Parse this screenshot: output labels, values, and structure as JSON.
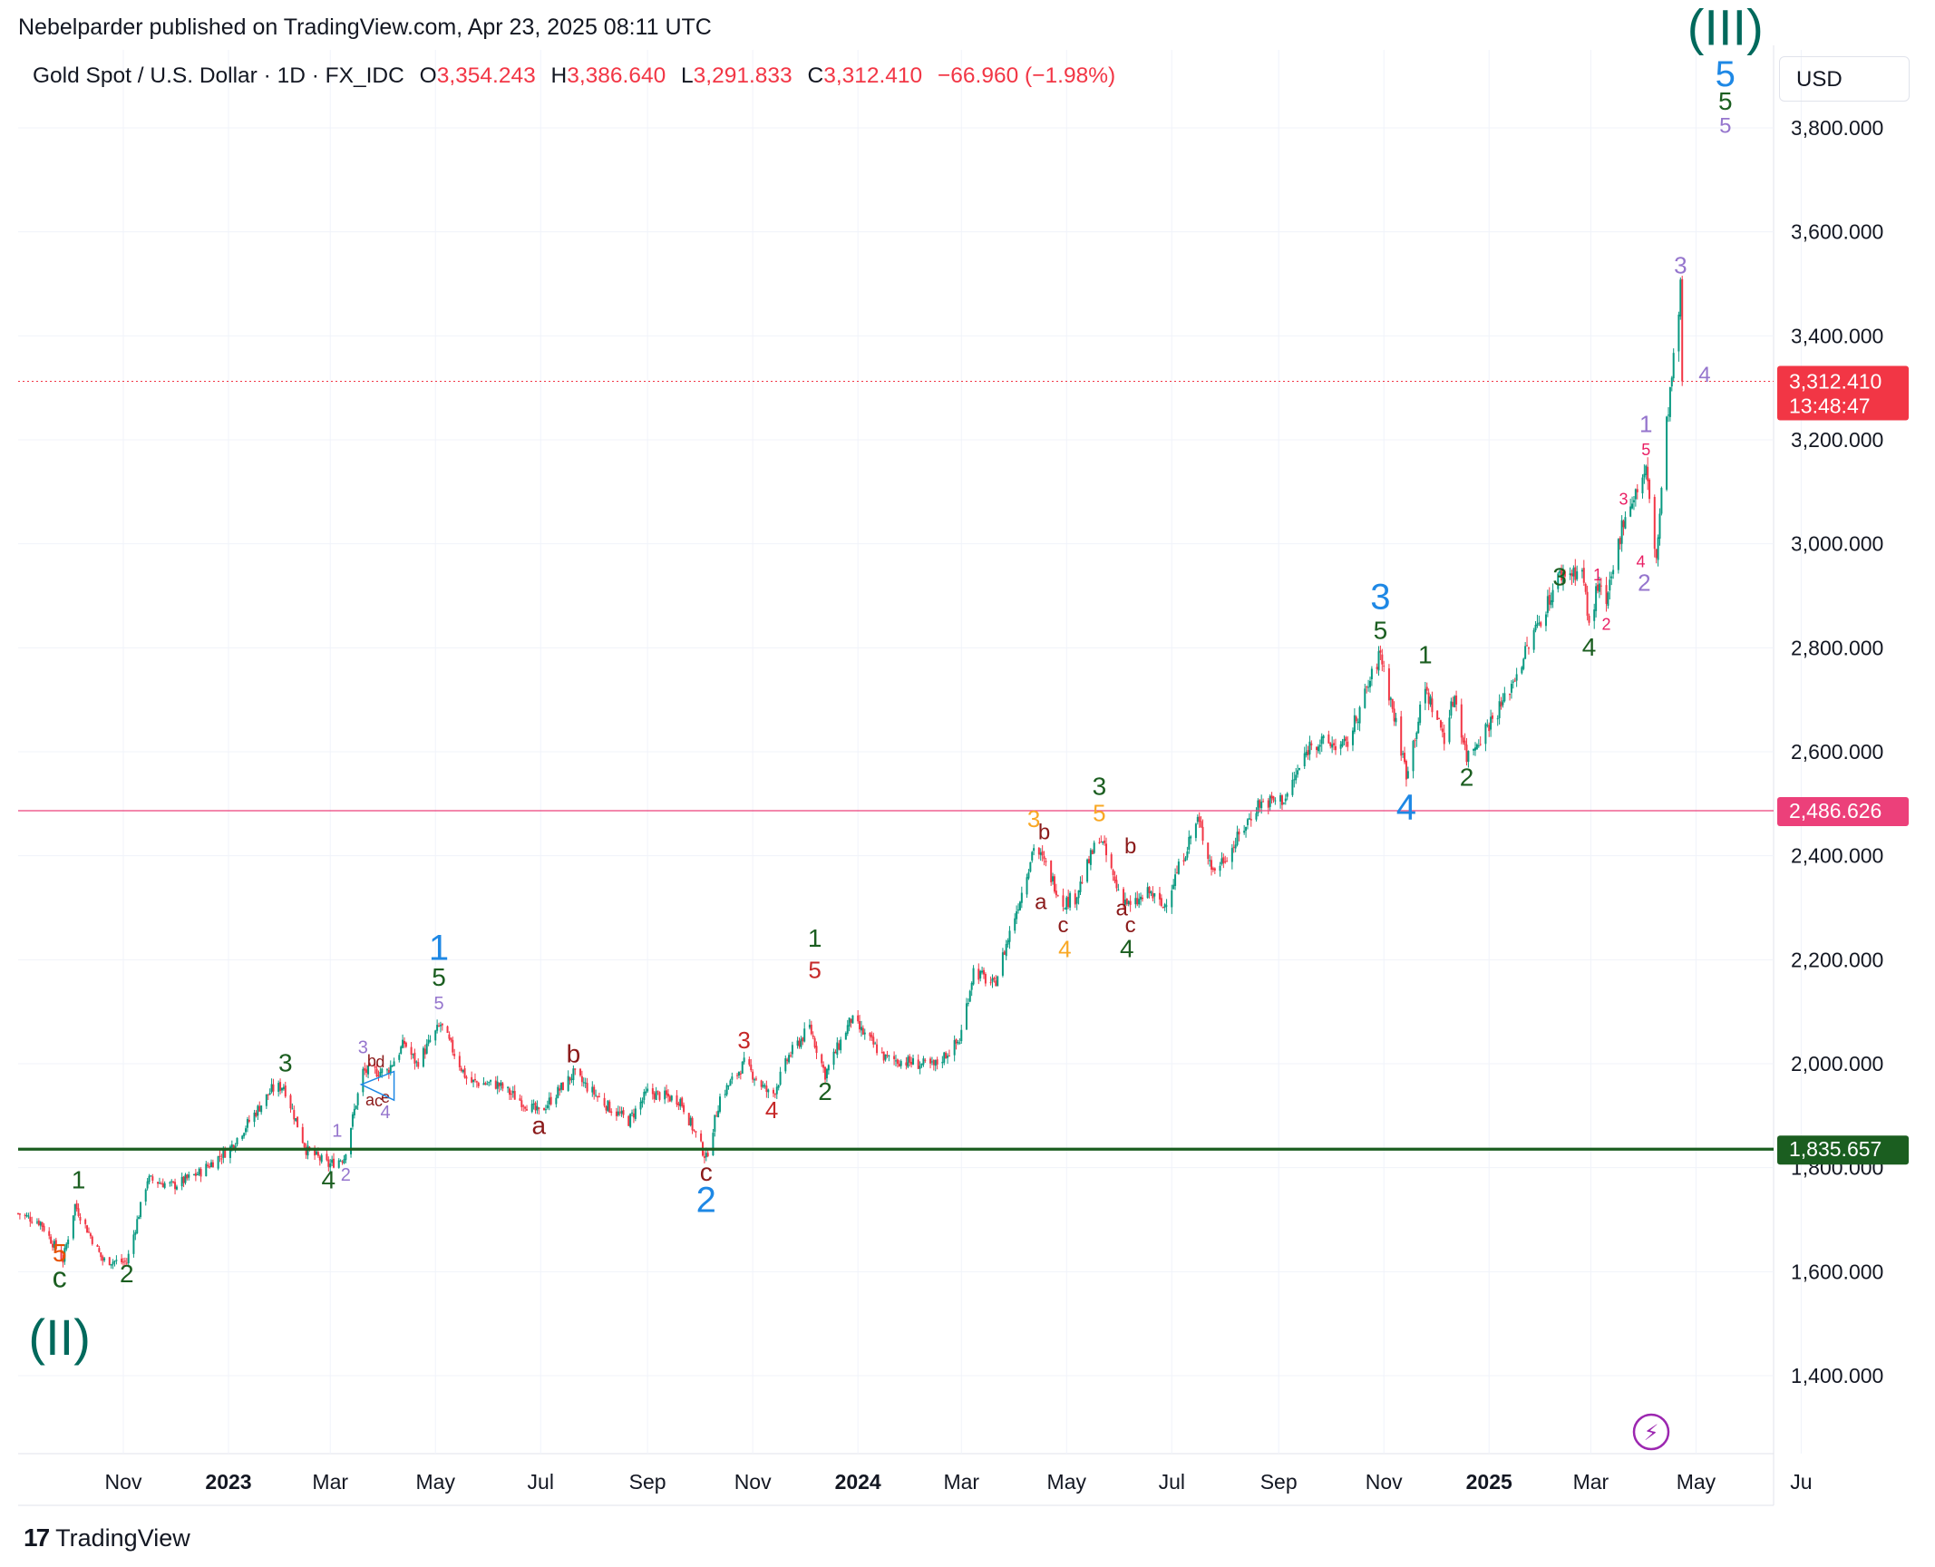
{
  "header": {
    "published": "Nebelparder published on TradingView.com, Apr 23, 2025 08:11 UTC"
  },
  "legend": {
    "symbol": "Gold Spot / U.S. Dollar · 1D · FX_IDC",
    "open_label": "O",
    "open": "3,354.243",
    "high_label": "H",
    "high": "3,386.640",
    "low_label": "L",
    "low": "3,291.833",
    "close_label": "C",
    "close": "3,312.410",
    "change": "−66.960 (−1.98%)"
  },
  "currency_button": "USD",
  "footer": {
    "brand": "TradingView",
    "logo_icon": "tradingview-logo-icon"
  },
  "colors": {
    "up": "#089981",
    "down": "#f23645",
    "grid": "#f0f3fa",
    "support_line": "#1b5e20",
    "resistance_line": "#ec407a"
  },
  "chart_data": {
    "type": "candlestick",
    "ylim": [
      1250,
      3950
    ],
    "y_ticks": [
      1400,
      1600,
      1800,
      2000,
      2200,
      2400,
      2600,
      2800,
      3000,
      3200,
      3400,
      3600,
      3800
    ],
    "y_tick_labels": [
      "1,400.000",
      "1,600.000",
      "1,800.000",
      "2,000.000",
      "2,200.000",
      "2,400.000",
      "2,600.000",
      "2,800.000",
      "3,000.000",
      "3,200.000",
      "3,400.000",
      "3,600.000",
      "3,800.000"
    ],
    "x_range": [
      "2022-09-01",
      "2025-06-15"
    ],
    "x_ticks": [
      {
        "date": "2022-11-01",
        "label": "Nov",
        "bold": false
      },
      {
        "date": "2023-01-01",
        "label": "2023",
        "bold": true
      },
      {
        "date": "2023-03-01",
        "label": "Mar",
        "bold": false
      },
      {
        "date": "2023-05-01",
        "label": "May",
        "bold": false
      },
      {
        "date": "2023-07-01",
        "label": "Jul",
        "bold": false
      },
      {
        "date": "2023-09-01",
        "label": "Sep",
        "bold": false
      },
      {
        "date": "2023-11-01",
        "label": "Nov",
        "bold": false
      },
      {
        "date": "2024-01-01",
        "label": "2024",
        "bold": true
      },
      {
        "date": "2024-03-01",
        "label": "Mar",
        "bold": false
      },
      {
        "date": "2024-05-01",
        "label": "May",
        "bold": false
      },
      {
        "date": "2024-07-01",
        "label": "Jul",
        "bold": false
      },
      {
        "date": "2024-09-01",
        "label": "Sep",
        "bold": false
      },
      {
        "date": "2024-11-01",
        "label": "Nov",
        "bold": false
      },
      {
        "date": "2025-01-01",
        "label": "2025",
        "bold": true
      },
      {
        "date": "2025-03-01",
        "label": "Mar",
        "bold": false
      },
      {
        "date": "2025-05-01",
        "label": "May",
        "bold": false
      },
      {
        "date": "2025-07-01",
        "label": "Ju",
        "bold": false
      }
    ],
    "price_path": [
      [
        "2022-09-01",
        1712
      ],
      [
        "2022-09-14",
        1695
      ],
      [
        "2022-09-27",
        1622
      ],
      [
        "2022-10-04",
        1728
      ],
      [
        "2022-10-20",
        1622
      ],
      [
        "2022-11-03",
        1618
      ],
      [
        "2022-11-15",
        1778
      ],
      [
        "2022-11-30",
        1765
      ],
      [
        "2022-12-15",
        1790
      ],
      [
        "2023-01-02",
        1838
      ],
      [
        "2023-01-26",
        1950
      ],
      [
        "2023-02-02",
        1958
      ],
      [
        "2023-02-15",
        1835
      ],
      [
        "2023-02-28",
        1805
      ],
      [
        "2023-03-09",
        1820
      ],
      [
        "2023-03-20",
        1985
      ],
      [
        "2023-04-03",
        1985
      ],
      [
        "2023-04-13",
        2040
      ],
      [
        "2023-04-20",
        2000
      ],
      [
        "2023-05-04",
        2075
      ],
      [
        "2023-05-20",
        1965
      ],
      [
        "2023-06-06",
        1960
      ],
      [
        "2023-06-30",
        1905
      ],
      [
        "2023-07-20",
        1980
      ],
      [
        "2023-08-10",
        1915
      ],
      [
        "2023-08-21",
        1890
      ],
      [
        "2023-09-01",
        1945
      ],
      [
        "2023-09-20",
        1930
      ],
      [
        "2023-10-05",
        1818
      ],
      [
        "2023-10-13",
        1935
      ],
      [
        "2023-10-27",
        2000
      ],
      [
        "2023-11-12",
        1935
      ],
      [
        "2023-11-22",
        2015
      ],
      [
        "2023-12-04",
        2070
      ],
      [
        "2023-12-13",
        1980
      ],
      [
        "2023-12-28",
        2085
      ],
      [
        "2024-01-17",
        2010
      ],
      [
        "2024-02-14",
        1995
      ],
      [
        "2024-02-29",
        2045
      ],
      [
        "2024-03-08",
        2180
      ],
      [
        "2024-03-20",
        2150
      ],
      [
        "2024-04-05",
        2330
      ],
      [
        "2024-04-12",
        2420
      ],
      [
        "2024-04-19",
        2380
      ],
      [
        "2024-04-29",
        2310
      ],
      [
        "2024-05-06",
        2320
      ],
      [
        "2024-05-20",
        2440
      ],
      [
        "2024-05-30",
        2340
      ],
      [
        "2024-06-07",
        2300
      ],
      [
        "2024-06-18",
        2330
      ],
      [
        "2024-06-26",
        2300
      ],
      [
        "2024-07-16",
        2470
      ],
      [
        "2024-07-25",
        2370
      ],
      [
        "2024-08-05",
        2415
      ],
      [
        "2024-08-20",
        2500
      ],
      [
        "2024-09-05",
        2510
      ],
      [
        "2024-09-20",
        2620
      ],
      [
        "2024-10-10",
        2610
      ],
      [
        "2024-10-30",
        2790
      ],
      [
        "2024-11-14",
        2560
      ],
      [
        "2024-11-25",
        2720
      ],
      [
        "2024-12-06",
        2630
      ],
      [
        "2024-12-12",
        2710
      ],
      [
        "2024-12-19",
        2590
      ],
      [
        "2025-01-10",
        2700
      ],
      [
        "2025-02-11",
        2940
      ],
      [
        "2025-02-24",
        2950
      ],
      [
        "2025-02-28",
        2840
      ],
      [
        "2025-03-05",
        2920
      ],
      [
        "2025-03-10",
        2880
      ],
      [
        "2025-03-20",
        3050
      ],
      [
        "2025-04-02",
        3140
      ],
      [
        "2025-04-08",
        2970
      ],
      [
        "2025-04-14",
        3230
      ],
      [
        "2025-04-21",
        3440
      ],
      [
        "2025-04-22",
        3490
      ],
      [
        "2025-04-23",
        3312
      ]
    ],
    "last_price": {
      "value": 3312.41,
      "label": "3,312.410",
      "countdown": "13:48:47"
    },
    "horizontal_lines": [
      {
        "value": 2486.626,
        "label": "2,486.626",
        "color": "#ec407a",
        "width": 1.2
      },
      {
        "value": 1835.657,
        "label": "1,835.657",
        "color": "#1b5e20",
        "width": 3.2
      }
    ],
    "wave_labels": [
      {
        "t": "(II)",
        "d": "2022-09-25",
        "p": 1440,
        "c": "#00695c",
        "s": 56
      },
      {
        "t": "c",
        "d": "2022-09-25",
        "p": 1570,
        "c": "#1b5e20",
        "s": 32
      },
      {
        "t": "5",
        "d": "2022-09-25",
        "p": 1620,
        "c": "#e65100",
        "s": 28
      },
      {
        "t": "1",
        "d": "2022-10-06",
        "p": 1760,
        "c": "#1b5e20",
        "s": 28
      },
      {
        "t": "2",
        "d": "2022-11-03",
        "p": 1580,
        "c": "#1b5e20",
        "s": 28
      },
      {
        "t": "3",
        "d": "2023-02-03",
        "p": 1985,
        "c": "#1b5e20",
        "s": 28
      },
      {
        "t": "4",
        "d": "2023-02-28",
        "p": 1760,
        "c": "#1b5e20",
        "s": 28
      },
      {
        "t": "1",
        "d": "2023-03-05",
        "p": 1860,
        "c": "#9575cd",
        "s": 20
      },
      {
        "t": "2",
        "d": "2023-03-10",
        "p": 1775,
        "c": "#9575cd",
        "s": 20
      },
      {
        "t": "3",
        "d": "2023-03-20",
        "p": 2020,
        "c": "#9575cd",
        "s": 20
      },
      {
        "t": "b",
        "d": "2023-03-25",
        "p": 1995,
        "c": "#8b1a1a",
        "s": 18
      },
      {
        "t": "d",
        "d": "2023-03-30",
        "p": 1993,
        "c": "#8b1a1a",
        "s": 18
      },
      {
        "t": "a",
        "d": "2023-03-24",
        "p": 1920,
        "c": "#8b1a1a",
        "s": 18
      },
      {
        "t": "c",
        "d": "2023-03-29",
        "p": 1918,
        "c": "#8b1a1a",
        "s": 18
      },
      {
        "t": "e",
        "d": "2023-04-02",
        "p": 1925,
        "c": "#8b1a1a",
        "s": 18
      },
      {
        "t": "4",
        "d": "2023-04-02",
        "p": 1895,
        "c": "#9575cd",
        "s": 20
      },
      {
        "t": "1",
        "d": "2023-05-03",
        "p": 2200,
        "c": "#1e88e5",
        "s": 40
      },
      {
        "t": "5",
        "d": "2023-05-03",
        "p": 2150,
        "c": "#1b5e20",
        "s": 28
      },
      {
        "t": "5",
        "d": "2023-05-03",
        "p": 2105,
        "c": "#9575cd",
        "s": 20
      },
      {
        "t": "b",
        "d": "2023-07-20",
        "p": 2003,
        "c": "#8b1a1a",
        "s": 28
      },
      {
        "t": "a",
        "d": "2023-06-30",
        "p": 1865,
        "c": "#8b1a1a",
        "s": 28
      },
      {
        "t": "c",
        "d": "2023-10-05",
        "p": 1775,
        "c": "#8b1a1a",
        "s": 28
      },
      {
        "t": "2",
        "d": "2023-10-05",
        "p": 1715,
        "c": "#1e88e5",
        "s": 40
      },
      {
        "t": "3",
        "d": "2023-10-27",
        "p": 2030,
        "c": "#c62828",
        "s": 26
      },
      {
        "t": "4",
        "d": "2023-11-12",
        "p": 1895,
        "c": "#c62828",
        "s": 26
      },
      {
        "t": "1",
        "d": "2023-12-07",
        "p": 2225,
        "c": "#1b5e20",
        "s": 28
      },
      {
        "t": "5",
        "d": "2023-12-07",
        "p": 2165,
        "c": "#c62828",
        "s": 26
      },
      {
        "t": "2",
        "d": "2023-12-13",
        "p": 1930,
        "c": "#1b5e20",
        "s": 28
      },
      {
        "t": "3",
        "d": "2024-04-12",
        "p": 2455,
        "c": "#f9a825",
        "s": 26
      },
      {
        "t": "b",
        "d": "2024-04-18",
        "p": 2432,
        "c": "#8b1a1a",
        "s": 24
      },
      {
        "t": "a",
        "d": "2024-04-16",
        "p": 2297,
        "c": "#8b1a1a",
        "s": 24
      },
      {
        "t": "c",
        "d": "2024-04-29",
        "p": 2253,
        "c": "#8b1a1a",
        "s": 24
      },
      {
        "t": "4",
        "d": "2024-04-30",
        "p": 2205,
        "c": "#f9a825",
        "s": 26
      },
      {
        "t": "3",
        "d": "2024-05-20",
        "p": 2517,
        "c": "#1b5e20",
        "s": 28
      },
      {
        "t": "5",
        "d": "2024-05-20",
        "p": 2467,
        "c": "#f9a825",
        "s": 26
      },
      {
        "t": "b",
        "d": "2024-06-07",
        "p": 2405,
        "c": "#8b1a1a",
        "s": 24
      },
      {
        "t": "a",
        "d": "2024-06-02",
        "p": 2285,
        "c": "#8b1a1a",
        "s": 24
      },
      {
        "t": "c",
        "d": "2024-06-07",
        "p": 2253,
        "c": "#8b1a1a",
        "s": 24
      },
      {
        "t": "4",
        "d": "2024-06-05",
        "p": 2205,
        "c": "#1b5e20",
        "s": 28
      },
      {
        "t": "3",
        "d": "2024-10-30",
        "p": 2875,
        "c": "#1e88e5",
        "s": 40
      },
      {
        "t": "5",
        "d": "2024-10-30",
        "p": 2817,
        "c": "#1b5e20",
        "s": 28
      },
      {
        "t": "1",
        "d": "2024-11-25",
        "p": 2770,
        "c": "#1b5e20",
        "s": 28
      },
      {
        "t": "4",
        "d": "2024-11-14",
        "p": 2470,
        "c": "#1e88e5",
        "s": 40
      },
      {
        "t": "2",
        "d": "2024-12-19",
        "p": 2535,
        "c": "#1b5e20",
        "s": 28
      },
      {
        "t": "3",
        "d": "2025-02-11",
        "p": 2920,
        "c": "#1b5e20",
        "s": 28
      },
      {
        "t": "4",
        "d": "2025-02-28",
        "p": 2785,
        "c": "#1b5e20",
        "s": 28
      },
      {
        "t": "1",
        "d": "2025-03-05",
        "p": 2930,
        "c": "#e91e63",
        "s": 18
      },
      {
        "t": "2",
        "d": "2025-03-10",
        "p": 2835,
        "c": "#e91e63",
        "s": 18
      },
      {
        "t": "3",
        "d": "2025-03-20",
        "p": 3075,
        "c": "#e91e63",
        "s": 18
      },
      {
        "t": "4",
        "d": "2025-03-30",
        "p": 2955,
        "c": "#e91e63",
        "s": 18
      },
      {
        "t": "5",
        "d": "2025-04-02",
        "p": 3170,
        "c": "#e91e63",
        "s": 18
      },
      {
        "t": "1",
        "d": "2025-04-02",
        "p": 3215,
        "c": "#9575cd",
        "s": 26
      },
      {
        "t": "2",
        "d": "2025-04-01",
        "p": 2910,
        "c": "#9575cd",
        "s": 26
      },
      {
        "t": "3",
        "d": "2025-04-22",
        "p": 3520,
        "c": "#9575cd",
        "s": 26
      },
      {
        "t": "4",
        "d": "2025-05-06",
        "p": 3312,
        "c": "#9575cd",
        "s": 24
      },
      {
        "t": "(III)",
        "d": "2025-05-18",
        "p": 3960,
        "c": "#00695c",
        "s": 56
      },
      {
        "t": "5",
        "d": "2025-05-18",
        "p": 3880,
        "c": "#1e88e5",
        "s": 40
      },
      {
        "t": "5",
        "d": "2025-05-18",
        "p": 3835,
        "c": "#1b5e20",
        "s": 28
      },
      {
        "t": "5",
        "d": "2025-05-18",
        "p": 3790,
        "c": "#9575cd",
        "s": 24
      }
    ]
  }
}
